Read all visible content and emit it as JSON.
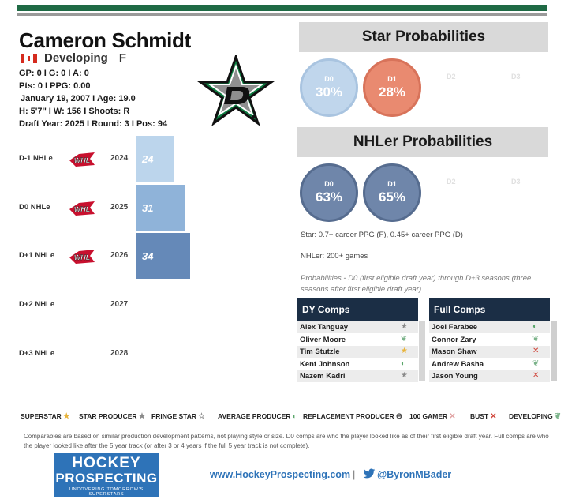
{
  "player": {
    "name": "Cameron Schmidt",
    "status": "Developing",
    "position": "F",
    "stats_line1": "GP: 0 I G: 0 I A: 0",
    "stats_line2": "Pts: 0 I PPG: 0.00",
    "birth_line": "January 19, 2007 I Age: 19.0",
    "body_line": "H: 5'7'' I W: 156 I Shoots: R",
    "draft_line": "Draft Year: 2025 I Round: 3 I Pos: 94"
  },
  "timeline": [
    {
      "label": "D-1 NHLe",
      "league": "WHL",
      "year": "2024",
      "value": "24",
      "bar_fraction": 0.24,
      "color": "#bcd5ec"
    },
    {
      "label": "D0 NHLe",
      "league": "WHL",
      "year": "2025",
      "value": "31",
      "bar_fraction": 0.31,
      "color": "#8fb3d9"
    },
    {
      "label": "D+1 NHLe",
      "league": "WHL",
      "year": "2026",
      "value": "34",
      "bar_fraction": 0.34,
      "color": "#6589b8"
    },
    {
      "label": "D+2 NHLe",
      "league": "",
      "year": "2027",
      "value": "",
      "bar_fraction": 0,
      "color": ""
    },
    {
      "label": "D+3 NHLe",
      "league": "",
      "year": "2028",
      "value": "",
      "bar_fraction": 0,
      "color": ""
    }
  ],
  "star": {
    "title": "Star Probabilities",
    "circles": [
      {
        "label": "D0",
        "value": "30%",
        "color": "#c0d6ec",
        "border": "#a9c4e0"
      },
      {
        "label": "D1",
        "value": "28%",
        "color": "#e98a70",
        "border": "#d8735a"
      }
    ],
    "ghost_labels": [
      "D2",
      "D3"
    ]
  },
  "nhler": {
    "title": "NHLer Probabilities",
    "circles": [
      {
        "label": "D0",
        "value": "63%",
        "color": "#6f86aa",
        "border": "#566c8f"
      },
      {
        "label": "D1",
        "value": "65%",
        "color": "#6f86aa",
        "border": "#566c8f"
      }
    ],
    "ghost_labels": [
      "D2",
      "D3"
    ]
  },
  "notes": {
    "star_def": "Star: 0.7+ career PPG (F), 0.45+ career PPG (D)",
    "nhler_def": "NHLer: 200+ games",
    "prob_def": "Probabilities - D0 (first eligible draft year) through D+3 seasons (three seasons after first eligible draft year)"
  },
  "dy_comps": {
    "title": "DY Comps",
    "rows": [
      {
        "name": "Alex Tanguay",
        "icon": "star-producer-icon",
        "glyph": "★",
        "color": "#8a8a8a"
      },
      {
        "name": "Oliver Moore",
        "icon": "developing-icon",
        "glyph": "❦",
        "color": "#7bb38a"
      },
      {
        "name": "Tim Stutzle",
        "icon": "superstar-icon",
        "glyph": "★",
        "color": "#e8b43c"
      },
      {
        "name": "Kent Johnson",
        "icon": "average-producer-icon",
        "glyph": "◐",
        "color": "#5aa66a"
      },
      {
        "name": "Nazem Kadri",
        "icon": "star-producer-icon",
        "glyph": "★",
        "color": "#8a8a8a"
      }
    ]
  },
  "full_comps": {
    "title": "Full Comps",
    "rows": [
      {
        "name": "Joel Farabee",
        "icon": "average-producer-icon",
        "glyph": "◐",
        "color": "#5aa66a"
      },
      {
        "name": "Connor Zary",
        "icon": "developing-icon",
        "glyph": "❦",
        "color": "#7bb38a"
      },
      {
        "name": "Mason Shaw",
        "icon": "bust-icon",
        "glyph": "✕",
        "color": "#d0453a"
      },
      {
        "name": "Andrew Basha",
        "icon": "developing-icon",
        "glyph": "❦",
        "color": "#7bb38a"
      },
      {
        "name": "Jason Young",
        "icon": "bust-icon",
        "glyph": "✕",
        "color": "#d0453a"
      }
    ]
  },
  "legend": [
    {
      "label": "SUPERSTAR",
      "glyph": "★",
      "color": "#e8b43c",
      "icon": "superstar-icon"
    },
    {
      "label": "STAR PRODUCER",
      "glyph": "★",
      "color": "#8a8a8a",
      "icon": "star-producer-icon"
    },
    {
      "label": "FRINGE STAR",
      "glyph": "☆",
      "color": "#8a8a8a",
      "icon": "fringe-star-icon"
    },
    {
      "label": "AVERAGE PRODUCER",
      "glyph": "◐",
      "color": "#5aa66a",
      "icon": "average-producer-icon"
    },
    {
      "label": "REPLACEMENT PRODUCER",
      "glyph": "⊖",
      "color": "#444444",
      "icon": "replacement-producer-icon"
    },
    {
      "label": "100 GAMER",
      "glyph": "✕",
      "color": "#e0a0a0",
      "icon": "hundred-gamer-icon"
    },
    {
      "label": "BUST",
      "glyph": "✕",
      "color": "#d0453a",
      "icon": "bust-icon"
    },
    {
      "label": "DEVELOPING",
      "glyph": "❦",
      "color": "#7bb38a",
      "icon": "developing-icon"
    }
  ],
  "footnote": "Comparables are based on similar production development patterns, not playing style or size. D0 comps are who the player looked like as of their first eligible draft year. Full comps are who the player looked like after the 5 year track (or after 3 or 4 years if the full 5 year track is not complete).",
  "footer": {
    "logo_line1": "HOCKEY",
    "logo_line2": "PROSPECTING",
    "logo_tagline": "UNCOVERING TOMORROW'S SUPERSTARS",
    "website": "www.HockeyProspecting.com",
    "separator": "|",
    "twitter": "@ByronMBader"
  },
  "colors": {
    "top_bar": "#1f6a45",
    "comp_header": "#1b2e45",
    "brand_blue": "#2e73b8"
  }
}
